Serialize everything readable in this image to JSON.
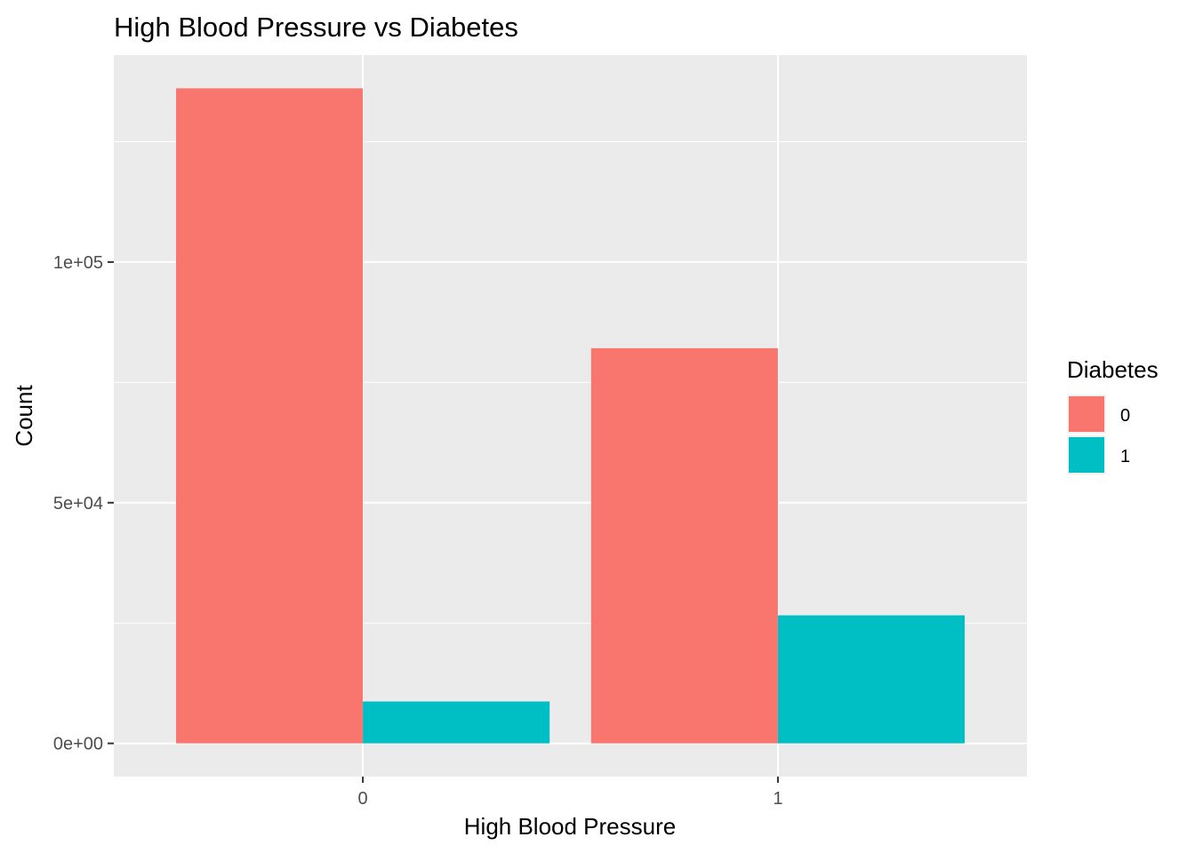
{
  "chart_data": {
    "type": "bar",
    "title": "High Blood Pressure vs Diabetes",
    "xlabel": "High Blood Pressure",
    "ylabel": "Count",
    "categories": [
      "0",
      "1"
    ],
    "series": [
      {
        "name": "0",
        "color": "#F8766D",
        "values": [
          136100,
          82100
        ]
      },
      {
        "name": "1",
        "color": "#00BFC4",
        "values": [
          8700,
          26600
        ]
      }
    ],
    "ylim": [
      -6900,
      143000
    ],
    "yticks": [
      0,
      50000,
      100000
    ],
    "yticklabels": [
      "0e+00",
      "5e+04",
      "1e+05"
    ],
    "grid": true,
    "legend": {
      "title": "Diabetes",
      "position": "right"
    }
  }
}
